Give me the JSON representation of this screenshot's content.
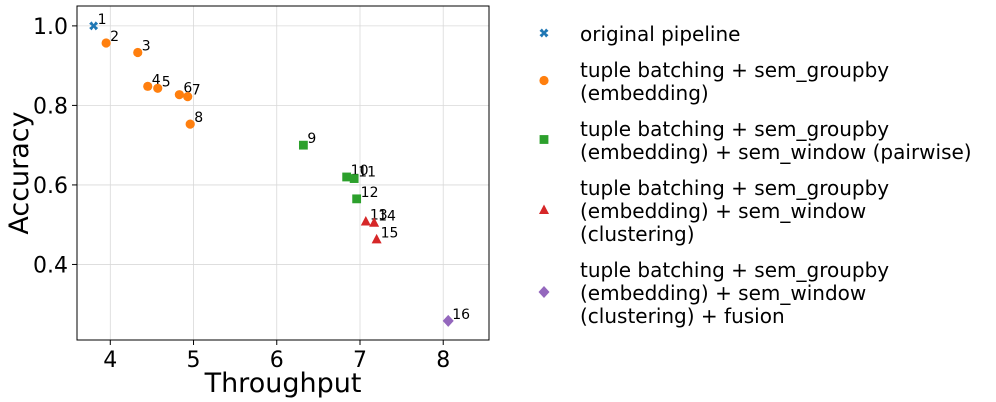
{
  "chart_data": {
    "type": "scatter",
    "title": "",
    "xlabel": "Throughput",
    "ylabel": "Accuracy",
    "xlim": [
      3.6,
      8.55
    ],
    "ylim": [
      0.21,
      1.05
    ],
    "xticks": [
      4,
      5,
      6,
      7,
      8
    ],
    "yticks": [
      0.4,
      0.6,
      0.8,
      1.0
    ],
    "xtick_labels": [
      "4",
      "5",
      "6",
      "7",
      "8"
    ],
    "ytick_labels": [
      "0.4",
      "0.6",
      "0.8",
      "1.0"
    ],
    "grid": true,
    "legend_position": "outside-right",
    "series": [
      {
        "name": "original pipeline",
        "legend_lines": [
          "original pipeline"
        ],
        "color": "#1f77b4",
        "marker": "x",
        "points": [
          {
            "x": 3.8,
            "y": 1.0,
            "label": "1"
          }
        ]
      },
      {
        "name": "tuple batching + sem_groupby (embedding)",
        "legend_lines": [
          "tuple batching + sem_groupby",
          "(embedding)"
        ],
        "color": "#ff7f0e",
        "marker": "circle",
        "points": [
          {
            "x": 3.95,
            "y": 0.957,
            "label": "2"
          },
          {
            "x": 4.33,
            "y": 0.933,
            "label": "3"
          },
          {
            "x": 4.45,
            "y": 0.848,
            "label": "4"
          },
          {
            "x": 4.57,
            "y": 0.843,
            "label": "5"
          },
          {
            "x": 4.83,
            "y": 0.827,
            "label": "6"
          },
          {
            "x": 4.93,
            "y": 0.822,
            "label": "7"
          },
          {
            "x": 4.96,
            "y": 0.753,
            "label": "8"
          }
        ]
      },
      {
        "name": "tuple batching + sem_groupby (embedding) + sem_window (pairwise)",
        "legend_lines": [
          "tuple batching + sem_groupby",
          "(embedding) + sem_window (pairwise)"
        ],
        "color": "#2ca02c",
        "marker": "square",
        "points": [
          {
            "x": 6.32,
            "y": 0.7,
            "label": "9"
          },
          {
            "x": 6.84,
            "y": 0.62,
            "label": "10"
          },
          {
            "x": 6.93,
            "y": 0.616,
            "label": "11"
          },
          {
            "x": 6.96,
            "y": 0.565,
            "label": "12"
          }
        ]
      },
      {
        "name": "tuple batching + sem_groupby (embedding) + sem_window (clustering)",
        "legend_lines": [
          "tuple batching + sem_groupby",
          "(embedding) + sem_window",
          "(clustering)"
        ],
        "color": "#d62728",
        "marker": "triangle",
        "points": [
          {
            "x": 7.07,
            "y": 0.508,
            "label": "13"
          },
          {
            "x": 7.17,
            "y": 0.505,
            "label": "14"
          },
          {
            "x": 7.2,
            "y": 0.463,
            "label": "15"
          }
        ]
      },
      {
        "name": "tuple batching + sem_groupby (embedding) + sem_window (clustering) + fusion",
        "legend_lines": [
          "tuple batching + sem_groupby",
          "(embedding) + sem_window",
          "(clustering) + fusion"
        ],
        "color": "#9467bd",
        "marker": "diamond",
        "points": [
          {
            "x": 8.06,
            "y": 0.258,
            "label": "16"
          }
        ]
      }
    ]
  }
}
